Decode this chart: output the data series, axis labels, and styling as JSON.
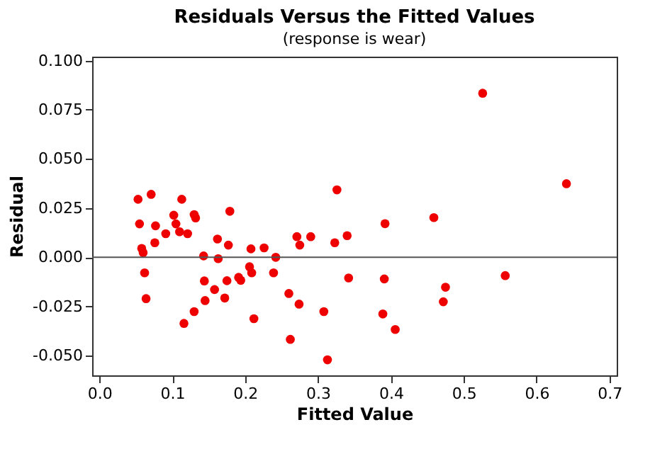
{
  "chart_data": {
    "type": "scatter",
    "title": "Residuals Versus the Fitted Values",
    "subtitle": "(response is wear)",
    "xlabel": "Fitted Value",
    "ylabel": "Residual",
    "x": [
      0.053,
      0.055,
      0.071,
      0.077,
      0.076,
      0.058,
      0.06,
      0.062,
      0.064,
      0.091,
      0.102,
      0.105,
      0.11,
      0.113,
      0.121,
      0.13,
      0.132,
      0.116,
      0.13,
      0.143,
      0.144,
      0.145,
      0.158,
      0.162,
      0.163,
      0.172,
      0.175,
      0.177,
      0.179,
      0.191,
      0.194,
      0.206,
      0.208,
      0.209,
      0.212,
      0.226,
      0.239,
      0.242,
      0.526,
      0.641,
      0.326,
      0.459,
      0.392,
      0.271,
      0.29,
      0.275,
      0.323,
      0.34,
      0.342,
      0.391,
      0.557,
      0.475,
      0.472,
      0.26,
      0.274,
      0.308,
      0.389,
      0.406,
      0.262,
      0.313
    ],
    "values": [
      0.0295,
      0.017,
      0.032,
      0.016,
      0.0074,
      0.0045,
      0.0024,
      -0.0079,
      -0.021,
      0.012,
      0.0214,
      0.017,
      0.013,
      0.0295,
      0.012,
      0.0217,
      0.02,
      -0.0336,
      -0.0276,
      0.0007,
      -0.012,
      -0.022,
      -0.0164,
      0.0093,
      -0.0007,
      -0.0207,
      -0.0119,
      0.0062,
      0.0234,
      -0.0102,
      -0.0117,
      -0.0048,
      0.0043,
      -0.0079,
      -0.0312,
      0.0048,
      -0.0079,
      0.0,
      0.0834,
      0.0374,
      0.0343,
      0.0202,
      0.0171,
      0.0105,
      0.0105,
      0.0062,
      0.0074,
      0.011,
      -0.0105,
      -0.011,
      -0.0093,
      -0.0152,
      -0.0226,
      -0.0184,
      -0.0238,
      -0.0276,
      -0.0288,
      -0.0367,
      -0.0417,
      -0.0521
    ],
    "color": "#ee0000",
    "marker": "circle",
    "xlim": [
      -0.01,
      0.71
    ],
    "xticks": [
      {
        "value": 0.0,
        "label": "0.0"
      },
      0.1,
      0.2,
      0.3,
      0.4,
      0.5,
      0.6,
      0.7
    ],
    "ylim": [
      -0.06,
      0.102
    ],
    "yticks": [
      {
        "value": -0.05,
        "label": "-0.050"
      },
      {
        "value": -0.025,
        "label": "-0.025"
      },
      {
        "value": 0.0,
        "label": "0.000"
      },
      {
        "value": 0.025,
        "label": "0.025"
      },
      {
        "value": 0.05,
        "label": "0.050"
      },
      {
        "value": 0.075,
        "label": "0.075"
      },
      {
        "value": 0.1,
        "label": "0.100"
      }
    ],
    "ref_lines": [
      {
        "axis": "y",
        "value": 0,
        "color": "#555555"
      }
    ],
    "grid": false
  }
}
